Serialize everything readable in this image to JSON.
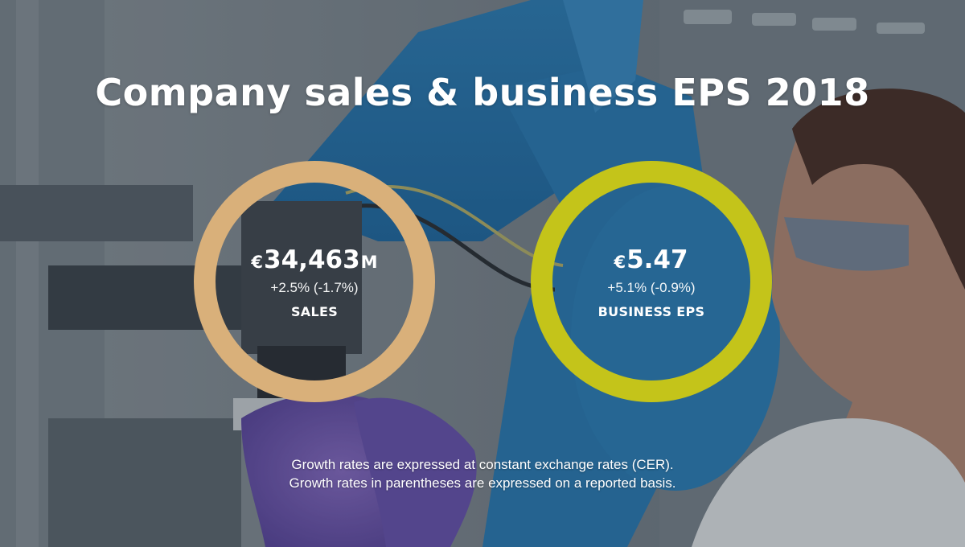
{
  "title": "Company sales & business EPS 2018",
  "colors": {
    "sales_ring": "#d9b07a",
    "eps_ring": "#c4c41a",
    "text": "#ffffff"
  },
  "metrics": [
    {
      "currency": "€",
      "value": "34,463",
      "unit": "M",
      "change": "+2.5% (-1.7%)",
      "label": "SALES"
    },
    {
      "currency": "€",
      "value": "5.47",
      "unit": "",
      "change": "+5.1% (-0.9%)",
      "label": "BUSINESS EPS"
    }
  ],
  "footnote": {
    "line1": "Growth rates are expressed at constant exchange rates (CER).",
    "line2": "Growth rates in parentheses are expressed on a reported basis."
  }
}
